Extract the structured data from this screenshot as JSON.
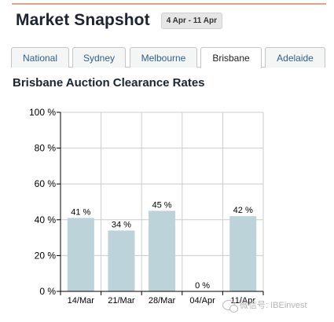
{
  "header": {
    "title": "Market Snapshot",
    "date_range": "4 Apr - 11 Apr"
  },
  "tabs": [
    {
      "label": "National",
      "active": false
    },
    {
      "label": "Sydney",
      "active": false
    },
    {
      "label": "Melbourne",
      "active": false
    },
    {
      "label": "Brisbane",
      "active": true
    },
    {
      "label": "Adelaide",
      "active": false
    }
  ],
  "section": {
    "title": "Brisbane Auction Clearance Rates"
  },
  "watermark": {
    "text": "微信号: IBEinvest"
  },
  "colors": {
    "bar": "#bcd3da",
    "grid": "#cccccc",
    "axis": "#000000",
    "accent_rule": "#e9a28a"
  },
  "chart_data": {
    "type": "bar",
    "categories": [
      "14/Mar",
      "21/Mar",
      "28/Mar",
      "04/Apr",
      "11/Apr"
    ],
    "values": [
      41,
      34,
      45,
      0,
      42
    ],
    "value_labels": [
      "41 %",
      "34 %",
      "45 %",
      "0 %",
      "42 %"
    ],
    "ylim": [
      0,
      100
    ],
    "yticks": [
      0,
      20,
      40,
      60,
      80,
      100
    ],
    "ytick_labels": [
      "0 %",
      "20 %",
      "40 %",
      "60 %",
      "80 %",
      "100 %"
    ],
    "grid": true,
    "title": "Brisbane Auction Clearance Rates"
  }
}
